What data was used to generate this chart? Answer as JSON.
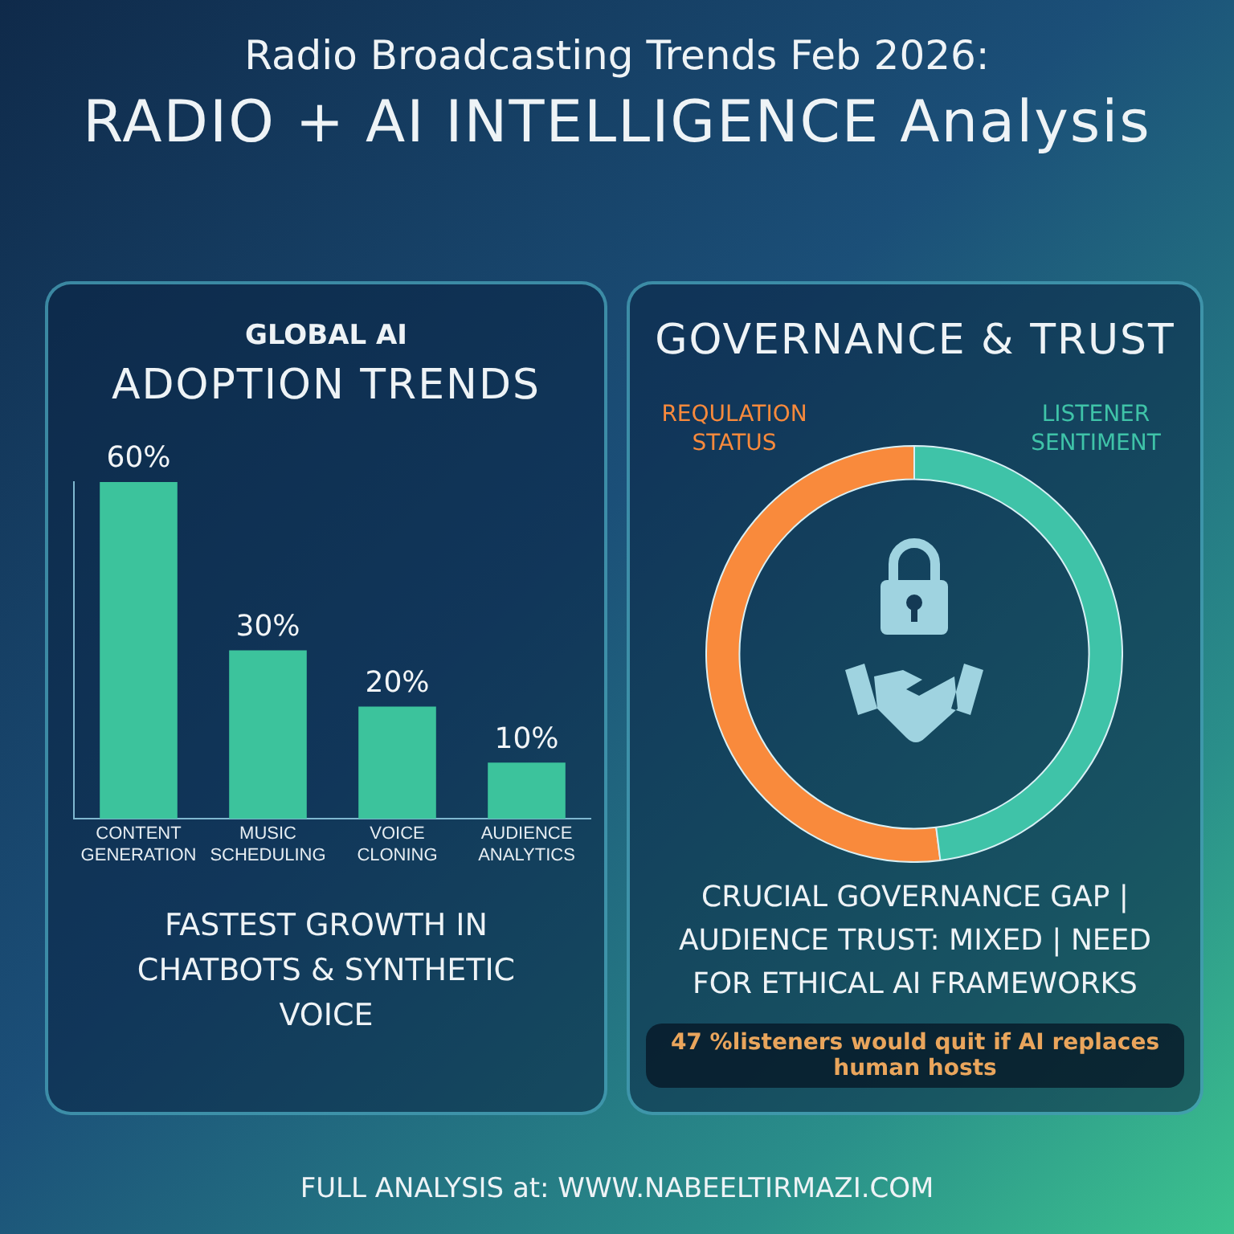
{
  "chart_data": [
    {
      "type": "other",
      "title": "Radio Broadcasting Trends Feb 2026:",
      "subtitle": "RADIO + AI INTELLIGENCE Analysis",
      "annotations": [
        "FULL ANALYSIS at: WWW.NABEELTIRMAZI.COM"
      ]
    },
    {
      "type": "bar",
      "title": "GLOBAL AI",
      "subtitle": "ADOPTION TRENDS",
      "categories": [
        "CONTENT GENERATION",
        "MUSIC SCHEDULING",
        "VOICE CLONING",
        "AUDIENCE ANALYTICS"
      ],
      "values": [
        60,
        30,
        20,
        10
      ],
      "value_labels": [
        "60%",
        "30%",
        "20%",
        "10%"
      ],
      "color": "#3cc39c",
      "grid": false,
      "legend": false,
      "tick_labels": "x",
      "annotations": [
        "FASTEST GROWTH IN CHATBOTS & SYNTHETIC VOICE"
      ]
    },
    {
      "type": "donut",
      "title": "GOVERNANCE & TRUST",
      "categories": [
        "REQULATION STATUS",
        "LISTENER SENTIMENT"
      ],
      "values": [
        52,
        48
      ],
      "colors": [
        "#f98a3c",
        "#3fc3a8"
      ],
      "legend": false,
      "annotations": [
        "CRUCIAL GOVERNANCE GAP | AUDIENCE TRUST: MIXED | NEED FOR ETHICAL AI FRAMEWORKS",
        "47 %listeners would quit if AI replaces human hosts"
      ]
    }
  ]
}
